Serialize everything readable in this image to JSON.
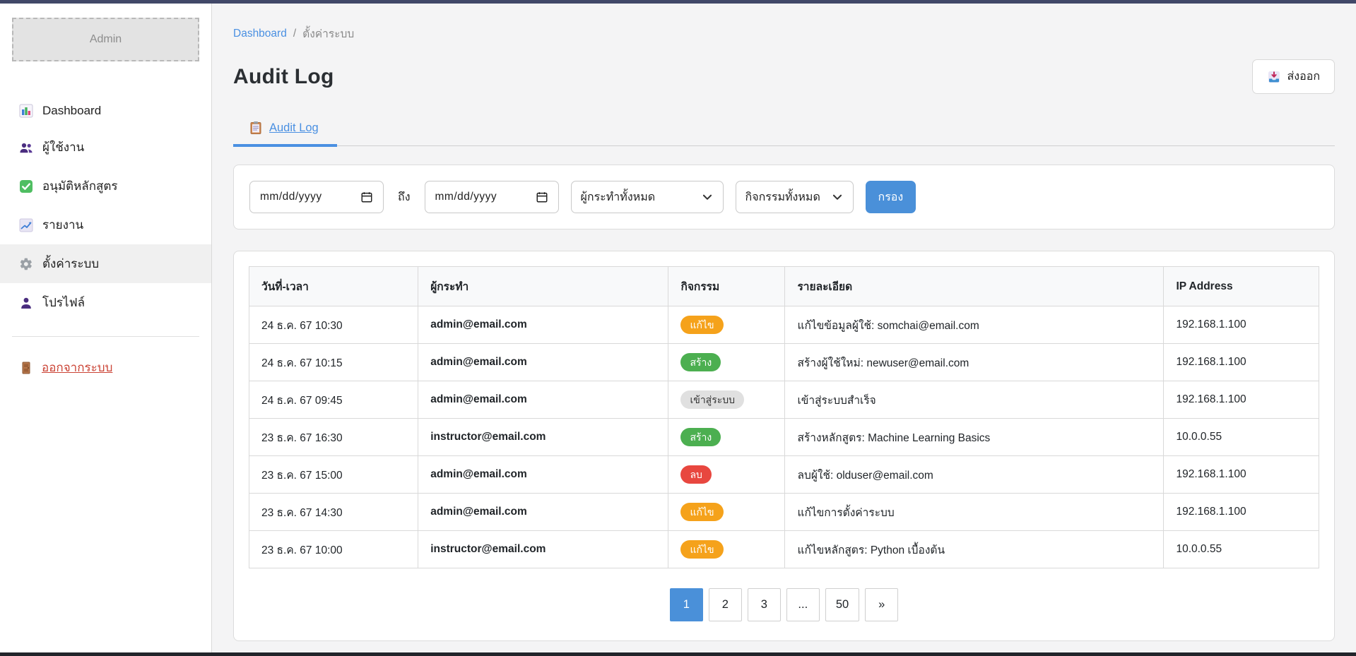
{
  "sidebar": {
    "logo_text": "Admin",
    "items": [
      {
        "key": "dashboard",
        "label": "Dashboard",
        "icon": "bar-chart-icon",
        "active": false
      },
      {
        "key": "users",
        "label": "ผู้ใช้งาน",
        "icon": "users-icon",
        "active": false
      },
      {
        "key": "approve-courses",
        "label": "อนุมัติหลักสูตร",
        "icon": "check-icon",
        "active": false
      },
      {
        "key": "reports",
        "label": "รายงาน",
        "icon": "trend-chart-icon",
        "active": false
      },
      {
        "key": "settings",
        "label": "ตั้งค่าระบบ",
        "icon": "gear-icon",
        "active": true
      },
      {
        "key": "profile",
        "label": "โปรไฟล์",
        "icon": "person-icon",
        "active": false
      }
    ],
    "logout_label": "ออกจากระบบ"
  },
  "breadcrumb": {
    "link": "Dashboard",
    "separator": "/",
    "current": "ตั้งค่าระบบ"
  },
  "page": {
    "title": "Audit Log",
    "export_label": "ส่งออก"
  },
  "tabs": [
    {
      "label": "Audit Log",
      "icon": "clipboard-icon",
      "active": true
    }
  ],
  "filters": {
    "date_from_placeholder": "mm/dd/yyyy",
    "to_label": "ถึง",
    "date_to_placeholder": "mm/dd/yyyy",
    "actor_selected": "ผู้กระทำทั้งหมด",
    "activity_selected": "กิจกรรมทั้งหมด",
    "filter_button_label": "กรอง"
  },
  "table": {
    "headers": [
      "วันที่-เวลา",
      "ผู้กระทำ",
      "กิจกรรม",
      "รายละเอียด",
      "IP Address"
    ],
    "rows": [
      {
        "datetime": "24 ธ.ค. 67 10:30",
        "actor": "admin@email.com",
        "action": "แก้ไข",
        "action_type": "edit",
        "details": "แก้ไขข้อมูลผู้ใช้: somchai@email.com",
        "ip": "192.168.1.100"
      },
      {
        "datetime": "24 ธ.ค. 67 10:15",
        "actor": "admin@email.com",
        "action": "สร้าง",
        "action_type": "create",
        "details": "สร้างผู้ใช้ใหม่: newuser@email.com",
        "ip": "192.168.1.100"
      },
      {
        "datetime": "24 ธ.ค. 67 09:45",
        "actor": "admin@email.com",
        "action": "เข้าสู่ระบบ",
        "action_type": "login",
        "details": "เข้าสู่ระบบสำเร็จ",
        "ip": "192.168.1.100"
      },
      {
        "datetime": "23 ธ.ค. 67 16:30",
        "actor": "instructor@email.com",
        "action": "สร้าง",
        "action_type": "create",
        "details": "สร้างหลักสูตร: Machine Learning Basics",
        "ip": "10.0.0.55"
      },
      {
        "datetime": "23 ธ.ค. 67 15:00",
        "actor": "admin@email.com",
        "action": "ลบ",
        "action_type": "delete",
        "details": "ลบผู้ใช้: olduser@email.com",
        "ip": "192.168.1.100"
      },
      {
        "datetime": "23 ธ.ค. 67 14:30",
        "actor": "admin@email.com",
        "action": "แก้ไข",
        "action_type": "edit",
        "details": "แก้ไขการตั้งค่าระบบ",
        "ip": "192.168.1.100"
      },
      {
        "datetime": "23 ธ.ค. 67 10:00",
        "actor": "instructor@email.com",
        "action": "แก้ไข",
        "action_type": "edit",
        "details": "แก้ไขหลักสูตร: Python เบื้องต้น",
        "ip": "10.0.0.55"
      }
    ],
    "badge_styles": {
      "edit": {
        "bg": "#F5A21B",
        "fg": "#FFFFFF"
      },
      "create": {
        "bg": "#4CAF50",
        "fg": "#FFFFFF"
      },
      "delete": {
        "bg": "#E8473F",
        "fg": "#FFFFFF"
      },
      "login": {
        "bg": "#E0E0E0",
        "fg": "#333333"
      }
    }
  },
  "pagination": {
    "pages": [
      "1",
      "2",
      "3",
      "...",
      "50",
      "»"
    ],
    "active_page": "1"
  },
  "colors": {
    "accent_blue": "#4A90D9",
    "link_blue": "#4A90E2",
    "logout_red": "#CB4335",
    "topbar_navy": "#414868"
  }
}
